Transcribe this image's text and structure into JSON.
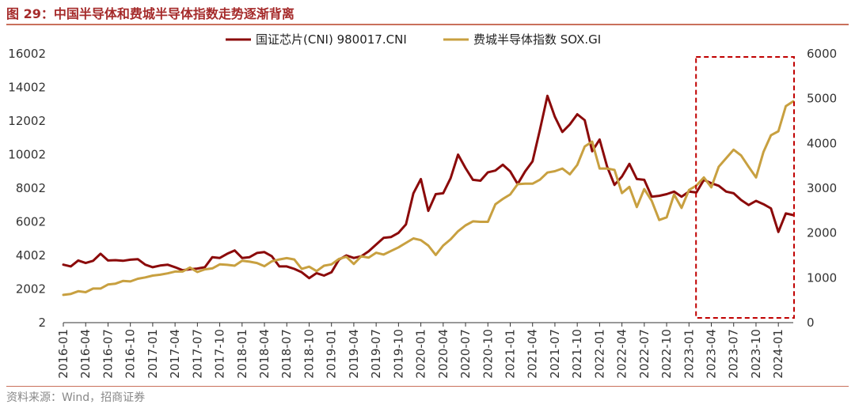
{
  "figure": {
    "title": "图 29：中国半导体和费城半导体指数走势逐渐背离",
    "source": "资料来源：Wind，招商证券"
  },
  "chart_data": {
    "type": "line",
    "title": "图 29：中国半导体和费城半导体指数走势逐渐背离",
    "xlabel": "",
    "ylabel": "",
    "x": [
      "2016-01",
      "2016-02",
      "2016-03",
      "2016-04",
      "2016-05",
      "2016-06",
      "2016-07",
      "2016-08",
      "2016-09",
      "2016-10",
      "2016-11",
      "2016-12",
      "2017-01",
      "2017-02",
      "2017-03",
      "2017-04",
      "2017-05",
      "2017-06",
      "2017-07",
      "2017-08",
      "2017-09",
      "2017-10",
      "2017-11",
      "2017-12",
      "2018-01",
      "2018-02",
      "2018-03",
      "2018-04",
      "2018-05",
      "2018-06",
      "2018-07",
      "2018-08",
      "2018-09",
      "2018-10",
      "2018-11",
      "2018-12",
      "2019-01",
      "2019-02",
      "2019-03",
      "2019-04",
      "2019-05",
      "2019-06",
      "2019-07",
      "2019-08",
      "2019-09",
      "2019-10",
      "2019-11",
      "2019-12",
      "2020-01",
      "2020-02",
      "2020-03",
      "2020-04",
      "2020-05",
      "2020-06",
      "2020-07",
      "2020-08",
      "2020-09",
      "2020-10",
      "2020-11",
      "2020-12",
      "2021-01",
      "2021-02",
      "2021-03",
      "2021-04",
      "2021-05",
      "2021-06",
      "2021-07",
      "2021-08",
      "2021-09",
      "2021-10",
      "2021-11",
      "2021-12",
      "2022-01",
      "2022-02",
      "2022-03",
      "2022-04",
      "2022-05",
      "2022-06",
      "2022-07",
      "2022-08",
      "2022-09",
      "2022-10",
      "2022-11",
      "2022-12",
      "2023-01",
      "2023-02",
      "2023-03",
      "2023-04",
      "2023-05",
      "2023-06",
      "2023-07",
      "2023-08",
      "2023-09",
      "2023-10",
      "2023-11",
      "2023-12",
      "2024-01",
      "2024-02",
      "2024-03"
    ],
    "x_tick_labels": [
      "2016-01",
      "2016-04",
      "2016-07",
      "2016-10",
      "2017-01",
      "2017-04",
      "2017-07",
      "2017-10",
      "2018-01",
      "2018-04",
      "2018-07",
      "2018-10",
      "2019-01",
      "2019-04",
      "2019-07",
      "2019-10",
      "2020-01",
      "2020-04",
      "2020-07",
      "2020-10",
      "2021-01",
      "2021-04",
      "2021-07",
      "2021-10",
      "2022-01",
      "2022-04",
      "2022-07",
      "2022-10",
      "2023-01",
      "2023-04",
      "2023-07",
      "2023-10",
      "2024-01"
    ],
    "series": [
      {
        "name": "国证芯片(CNI) 980017.CNI",
        "axis": "left",
        "color": "#8b0a0a",
        "values": [
          3450,
          3350,
          3700,
          3550,
          3680,
          4100,
          3700,
          3720,
          3680,
          3750,
          3780,
          3450,
          3300,
          3400,
          3450,
          3300,
          3120,
          3180,
          3220,
          3300,
          3900,
          3850,
          4100,
          4300,
          3850,
          3900,
          4150,
          4200,
          3950,
          3350,
          3350,
          3200,
          3000,
          2650,
          2950,
          2800,
          3000,
          3750,
          4000,
          3850,
          3950,
          4250,
          4650,
          5050,
          5100,
          5350,
          5850,
          7700,
          8550,
          6650,
          7650,
          7700,
          8600,
          10000,
          9200,
          8500,
          8450,
          8950,
          9050,
          9400,
          9000,
          8250,
          9000,
          9600,
          11500,
          13500,
          12250,
          11350,
          11800,
          12400,
          12050,
          10200,
          10900,
          9300,
          8200,
          8700,
          9450,
          8550,
          8500,
          7500,
          7550,
          7650,
          7800,
          7500,
          7800,
          7750,
          8500,
          8300,
          8150,
          7800,
          7700,
          7300,
          7000,
          7250,
          7050,
          6800,
          5400,
          6500,
          6400
        ]
      },
      {
        "name": "费城半导体指数 SOX.GI",
        "axis": "right",
        "color": "#c8a040",
        "values": [
          620,
          640,
          700,
          680,
          760,
          760,
          850,
          870,
          930,
          920,
          980,
          1010,
          1050,
          1070,
          1100,
          1140,
          1140,
          1230,
          1130,
          1190,
          1210,
          1300,
          1290,
          1270,
          1380,
          1360,
          1330,
          1260,
          1370,
          1410,
          1440,
          1410,
          1200,
          1250,
          1150,
          1270,
          1300,
          1420,
          1470,
          1310,
          1480,
          1450,
          1560,
          1520,
          1600,
          1680,
          1780,
          1880,
          1840,
          1720,
          1510,
          1720,
          1860,
          2040,
          2170,
          2260,
          2250,
          2250,
          2640,
          2760,
          2860,
          3090,
          3100,
          3100,
          3190,
          3350,
          3380,
          3440,
          3310,
          3520,
          3930,
          4040,
          3440,
          3440,
          3410,
          2890,
          3030,
          2580,
          2980,
          2720,
          2290,
          2350,
          2860,
          2560,
          2960,
          3060,
          3240,
          3020,
          3480,
          3670,
          3860,
          3730,
          3480,
          3240,
          3810,
          4180,
          4270,
          4830,
          4940
        ]
      }
    ],
    "y_left": {
      "lim": [
        2,
        16002
      ],
      "ticks": [
        "2",
        "2002",
        "4002",
        "6002",
        "8002",
        "10002",
        "12002",
        "14002",
        "16002"
      ]
    },
    "y_right": {
      "lim": [
        0,
        6000
      ],
      "ticks": [
        "0",
        "1000",
        "2000",
        "3000",
        "4000",
        "5000",
        "6000"
      ]
    },
    "highlight_box": {
      "from": "2023-02",
      "to": "2024-03",
      "style": "dashed",
      "color": "#c00000"
    },
    "grid": false,
    "legend": "top"
  }
}
